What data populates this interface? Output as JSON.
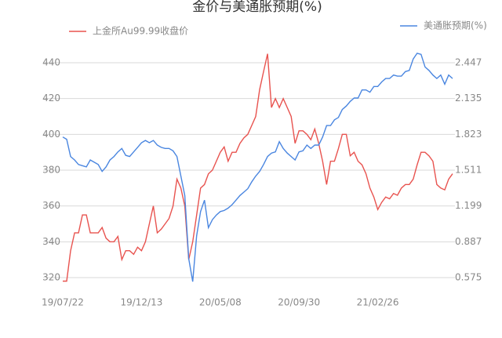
{
  "chart_data": {
    "type": "line",
    "title": "金价与美通胀预期(%)",
    "categories": [
      "19/07/22",
      null,
      null,
      null,
      null,
      null,
      null,
      null,
      null,
      null,
      null,
      null,
      null,
      null,
      null,
      null,
      null,
      null,
      null,
      null,
      "19/12/13",
      null,
      null,
      null,
      null,
      null,
      null,
      null,
      null,
      null,
      null,
      null,
      null,
      null,
      null,
      null,
      null,
      null,
      null,
      null,
      "20/05/08",
      null,
      null,
      null,
      null,
      null,
      null,
      null,
      null,
      null,
      null,
      null,
      null,
      null,
      null,
      null,
      null,
      null,
      null,
      null,
      "20/09/30",
      null,
      null,
      null,
      null,
      null,
      null,
      null,
      null,
      null,
      null,
      null,
      null,
      null,
      null,
      null,
      null,
      null,
      null,
      null,
      "21/02/26",
      null,
      null,
      null,
      null,
      null,
      null,
      null,
      null,
      null,
      null,
      null,
      null,
      null,
      null,
      null,
      null,
      null,
      null,
      null
    ],
    "series": [
      {
        "name": "上金所Au99.99收盘价",
        "color": "#e8534f",
        "values": [
          318,
          318,
          335,
          345,
          345,
          355,
          355,
          345,
          345,
          345,
          348,
          342,
          340,
          340,
          343,
          330,
          335,
          335,
          333,
          337,
          335,
          340,
          350,
          360,
          345,
          347,
          350,
          353,
          360,
          375,
          370,
          360,
          330,
          340,
          355,
          370,
          372,
          378,
          380,
          385,
          390,
          393,
          385,
          390,
          390,
          395,
          398,
          400,
          405,
          410,
          425,
          435,
          445,
          415,
          420,
          415,
          420,
          415,
          410,
          395,
          402,
          402,
          400,
          397,
          403,
          395,
          385,
          372,
          385,
          385,
          392,
          400,
          400,
          388,
          390,
          385,
          383,
          378,
          370,
          365,
          358,
          362,
          365,
          364,
          367,
          366,
          370,
          372,
          372,
          375,
          383,
          390,
          390,
          388,
          385,
          372,
          370,
          369,
          375,
          378
        ]
      },
      {
        "name": "美通胀预期(%)",
        "color": "#4a86e0",
        "axis": "y2",
        "values": [
          1.8,
          1.78,
          1.63,
          1.6,
          1.56,
          1.55,
          1.54,
          1.6,
          1.58,
          1.56,
          1.5,
          1.54,
          1.6,
          1.63,
          1.67,
          1.7,
          1.64,
          1.63,
          1.67,
          1.71,
          1.75,
          1.77,
          1.75,
          1.77,
          1.73,
          1.71,
          1.7,
          1.7,
          1.68,
          1.63,
          1.46,
          1.29,
          0.74,
          0.54,
          0.94,
          1.15,
          1.25,
          1.01,
          1.08,
          1.12,
          1.15,
          1.16,
          1.18,
          1.21,
          1.25,
          1.29,
          1.32,
          1.35,
          1.41,
          1.46,
          1.5,
          1.56,
          1.63,
          1.66,
          1.67,
          1.76,
          1.7,
          1.66,
          1.63,
          1.6,
          1.67,
          1.68,
          1.73,
          1.7,
          1.73,
          1.73,
          1.8,
          1.9,
          1.9,
          1.95,
          1.97,
          2.04,
          2.07,
          2.11,
          2.14,
          2.14,
          2.21,
          2.21,
          2.19,
          2.24,
          2.24,
          2.28,
          2.31,
          2.31,
          2.34,
          2.33,
          2.33,
          2.37,
          2.38,
          2.48,
          2.53,
          2.52,
          2.41,
          2.38,
          2.34,
          2.31,
          2.34,
          2.26,
          2.34,
          2.31
        ]
      }
    ],
    "ylim": [
      310,
      450
    ],
    "yticks": [
      320,
      340,
      360,
      380,
      400,
      420,
      440
    ],
    "y2lim": [
      0.419,
      2.603
    ],
    "y2ticks": [
      0.575,
      0.887,
      1.199,
      1.511,
      1.823,
      2.135,
      2.447
    ],
    "grid": true
  }
}
